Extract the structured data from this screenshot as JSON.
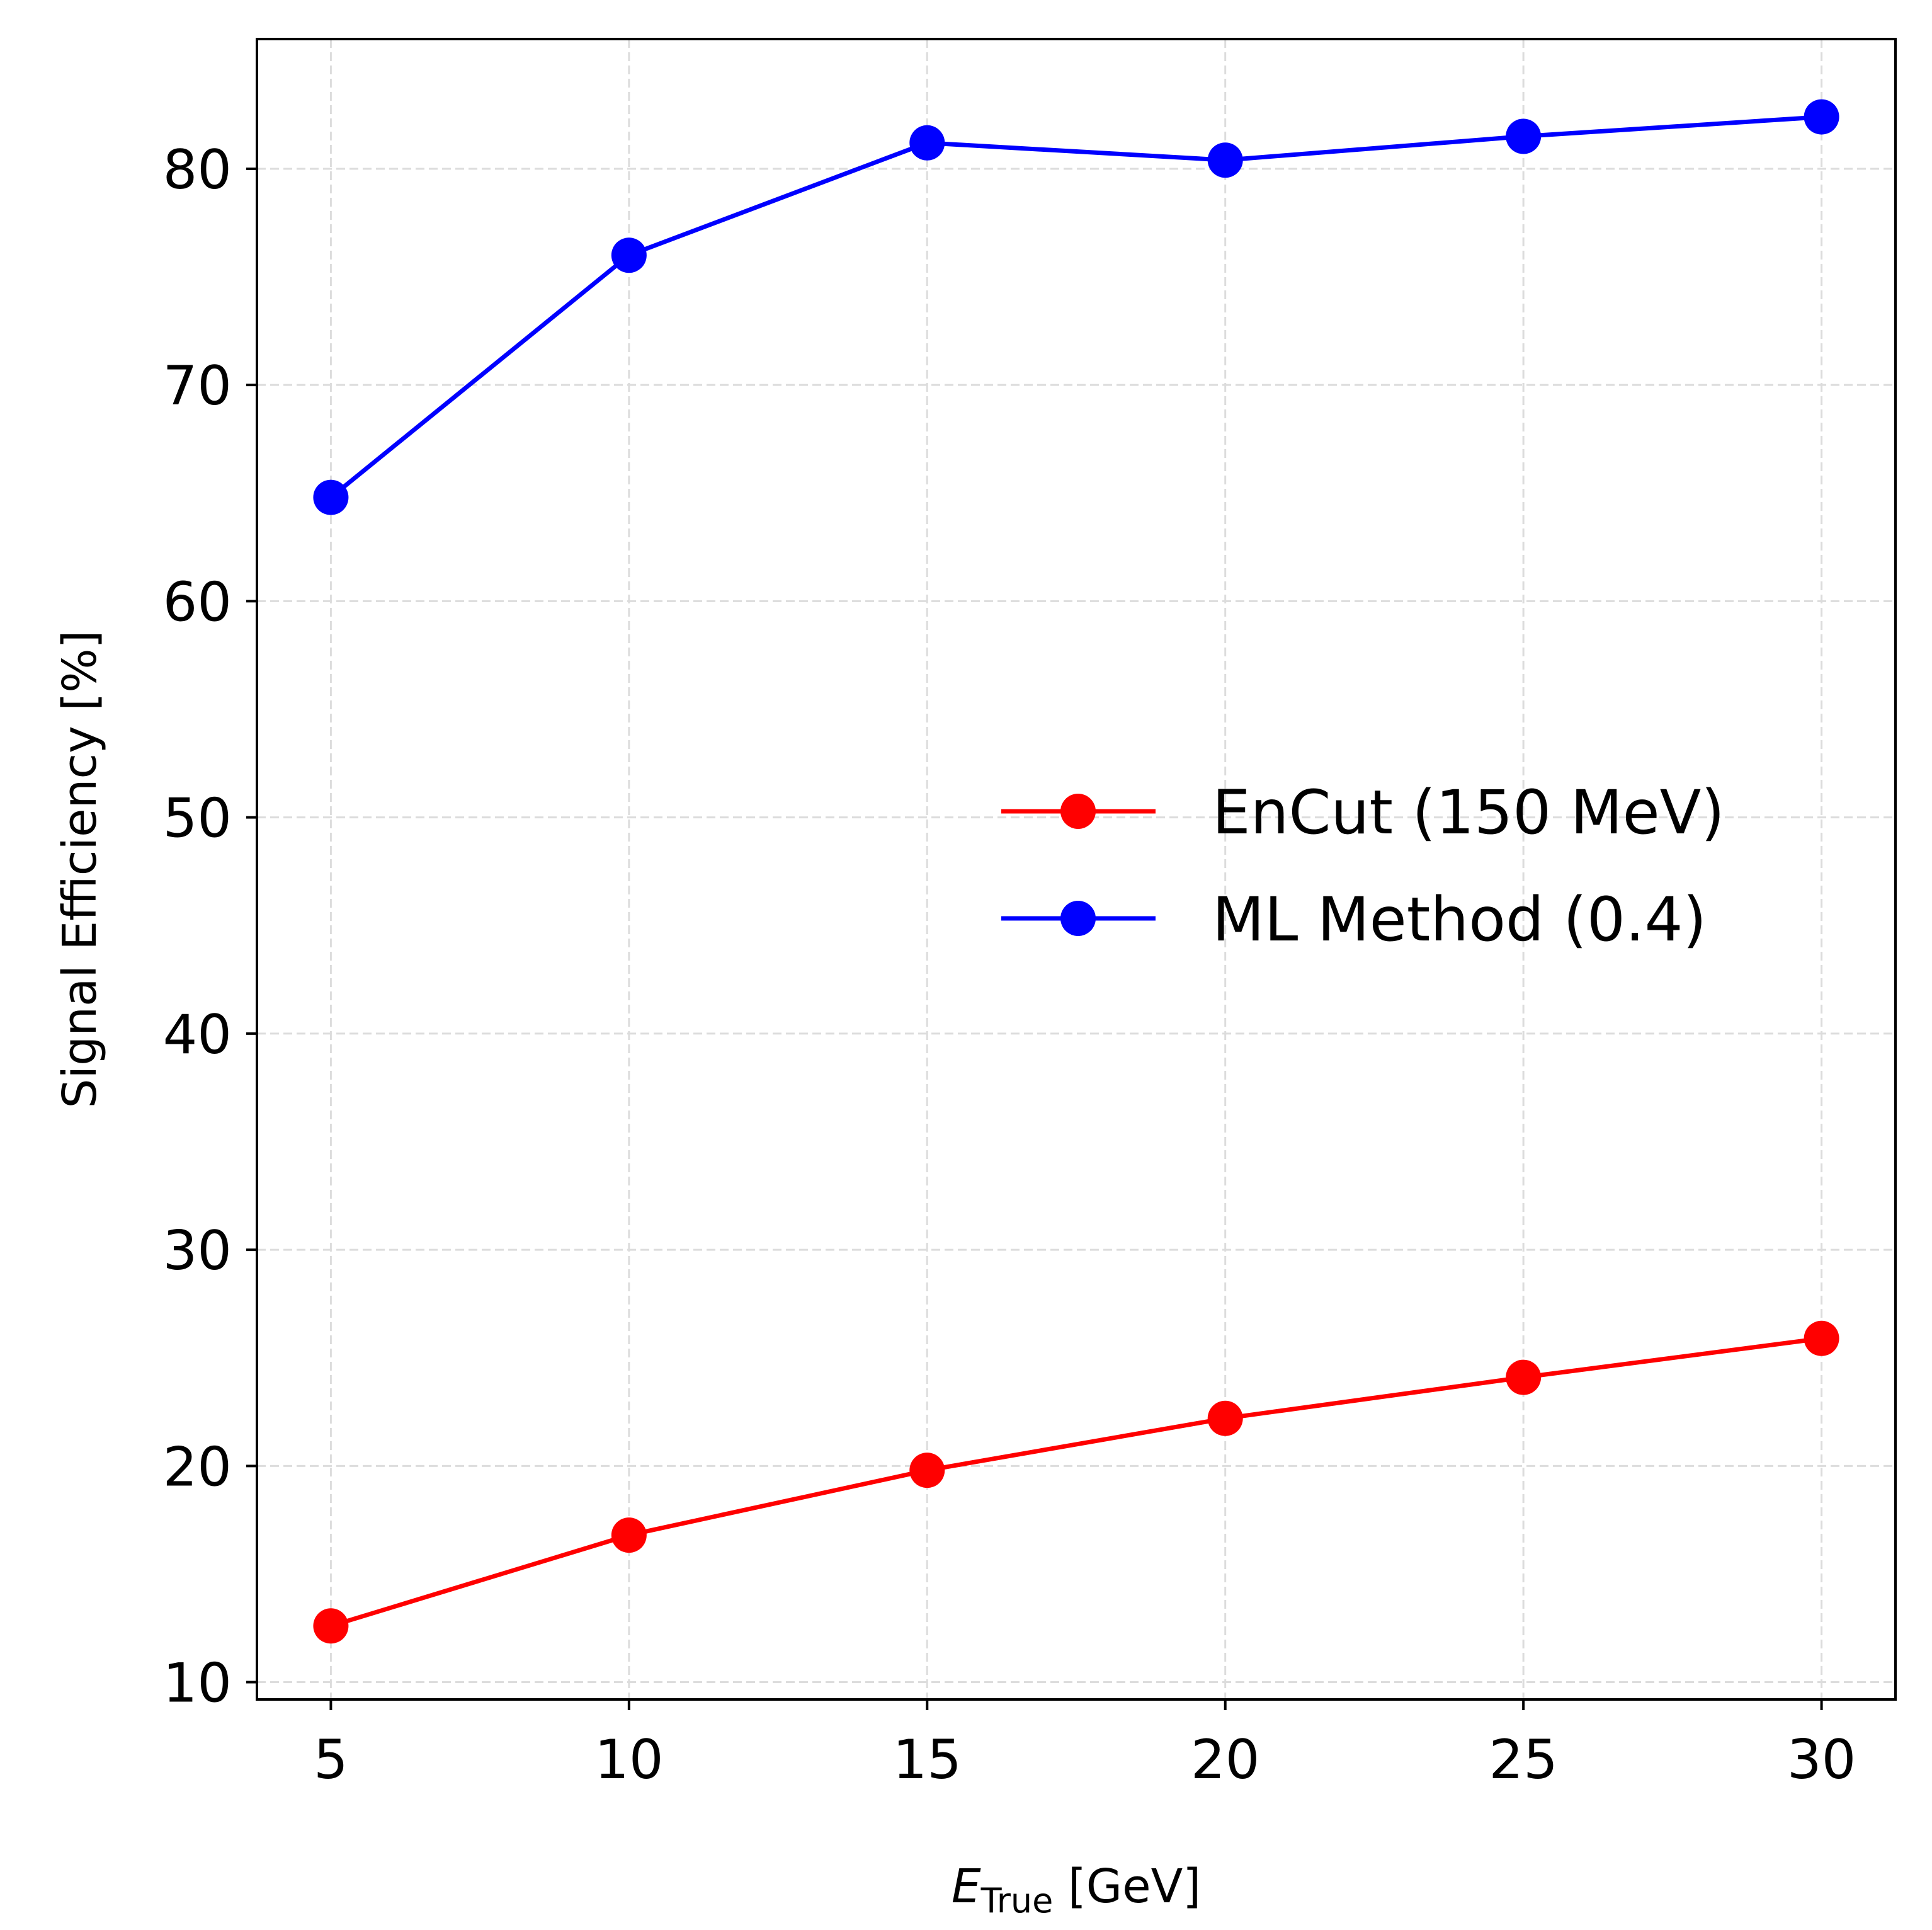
{
  "chart_data": {
    "type": "line",
    "title": "",
    "xlabel": {
      "main": "E",
      "subscript": "True",
      "suffix": " [GeV]"
    },
    "ylabel": "Signal Efficiency [%]",
    "x": [
      5,
      10,
      15,
      20,
      25,
      30
    ],
    "xlim": [
      3.76,
      31.24
    ],
    "ylim": [
      9.2,
      86.0
    ],
    "xticks": [
      5,
      10,
      15,
      20,
      25,
      30
    ],
    "yticks": [
      10,
      20,
      30,
      40,
      50,
      60,
      70,
      80
    ],
    "grid": true,
    "legend_position": "center-right",
    "series": [
      {
        "name": "EnCut (150 MeV)",
        "color": "#ff0000",
        "values": [
          12.6,
          16.8,
          19.8,
          22.2,
          24.1,
          25.9
        ]
      },
      {
        "name": "ML Method (0.4)",
        "color": "#0000ff",
        "values": [
          64.8,
          76.0,
          81.2,
          80.4,
          81.5,
          82.4
        ]
      }
    ]
  }
}
